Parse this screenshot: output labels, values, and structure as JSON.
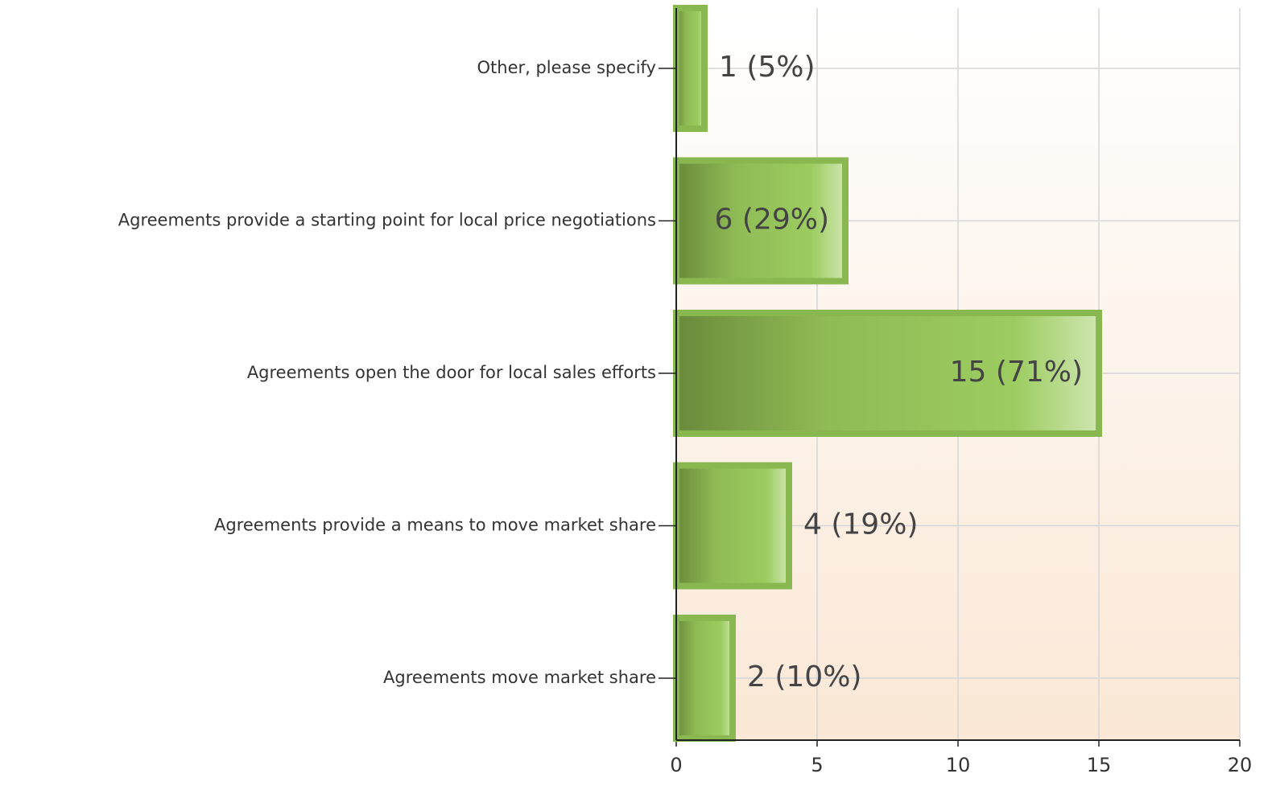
{
  "chart_data": {
    "type": "bar",
    "orientation": "horizontal",
    "categories": [
      "Other, please specify",
      "Agreements provide a starting point for local price negotiations",
      "Agreements open the door for local sales efforts",
      "Agreements provide a means to move market share",
      "Agreements move market share"
    ],
    "values": [
      1,
      6,
      15,
      4,
      2
    ],
    "value_labels": [
      "1 (5%)",
      "6 (29%)",
      "15 (71%)",
      "4 (19%)",
      "2 (10%)"
    ],
    "color": "#9ac85c",
    "xlim": [
      0,
      20
    ],
    "xticks": [
      0,
      5,
      10,
      15,
      20
    ],
    "grid": true
  }
}
